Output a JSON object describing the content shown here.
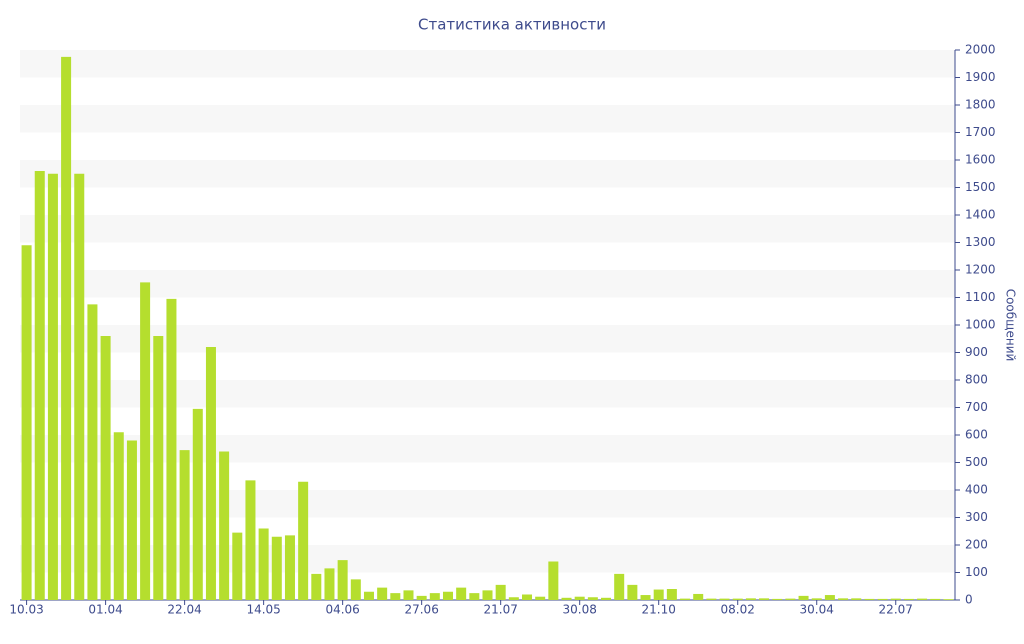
{
  "chart_data": {
    "type": "bar",
    "title": "Статистика активности",
    "y_axis_label": "Сообщений",
    "categories": [
      "10.03",
      null,
      null,
      null,
      null,
      null,
      "01.04",
      null,
      null,
      null,
      null,
      null,
      "22.04",
      null,
      null,
      null,
      null,
      null,
      "14.05",
      null,
      null,
      null,
      null,
      null,
      "04.06",
      null,
      null,
      null,
      null,
      null,
      "27.06",
      null,
      null,
      null,
      null,
      null,
      "21.07",
      null,
      null,
      null,
      null,
      null,
      "30.08",
      null,
      null,
      null,
      null,
      null,
      "21.10",
      null,
      null,
      null,
      null,
      null,
      "08.02",
      null,
      null,
      null,
      null,
      null,
      "30.04",
      null,
      null,
      null,
      null,
      null,
      "22.07",
      null,
      null,
      null,
      null
    ],
    "values": [
      1290,
      1560,
      1550,
      1975,
      1550,
      1075,
      960,
      610,
      580,
      1155,
      960,
      1095,
      545,
      695,
      920,
      540,
      245,
      435,
      260,
      230,
      235,
      430,
      95,
      115,
      145,
      75,
      30,
      45,
      25,
      35,
      15,
      25,
      30,
      45,
      25,
      35,
      55,
      10,
      20,
      12,
      140,
      8,
      12,
      10,
      8,
      95,
      55,
      18,
      38,
      40,
      5,
      22,
      5,
      5,
      5,
      6,
      6,
      4,
      5,
      15,
      6,
      18,
      6,
      6,
      4,
      4,
      5,
      4,
      5,
      4,
      3
    ],
    "color": "#b5de2e",
    "ylim": [
      0,
      2000
    ],
    "yticks": [
      0,
      100,
      200,
      300,
      400,
      500,
      600,
      700,
      800,
      900,
      1000,
      1100,
      1200,
      1300,
      1400,
      1500,
      1600,
      1700,
      1800,
      1900,
      2000
    ],
    "grid": true,
    "y_axis_side": "right"
  }
}
